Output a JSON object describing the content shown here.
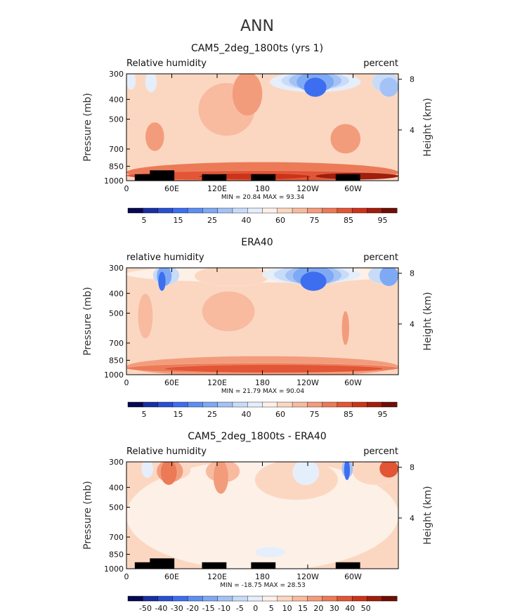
{
  "figure": {
    "title": "ANN"
  },
  "chart_data": [
    {
      "type": "heatmap",
      "title": "CAM5_2deg_1800ts (yrs 1)",
      "left_label": "Relative humidity",
      "right_label": "percent",
      "xlabel": "",
      "ylabel": "Pressure (mb)",
      "ylabel_right": "Height (km)",
      "x_ticks": [
        "0",
        "60E",
        "120E",
        "180",
        "120W",
        "60W"
      ],
      "y_ticks": [
        "300",
        "400",
        "500",
        "700",
        "850",
        "1000"
      ],
      "y_right_ticks": [
        "8",
        "4"
      ],
      "stats": "MIN =   20.84   MAX =   93.34",
      "xlim": [
        0,
        360
      ],
      "ylim": [
        1000,
        300
      ],
      "colorbar": {
        "labels": [
          "5",
          "15",
          "25",
          "40",
          "60",
          "75",
          "85",
          "95"
        ],
        "colors": [
          "#08084f",
          "#1a2fa0",
          "#2a4fd0",
          "#3d6ef0",
          "#5d8ff2",
          "#7ea9f4",
          "#a4c2f5",
          "#c8dbf7",
          "#e5eefb",
          "#fdf0e6",
          "#fbd7c2",
          "#f8bb9f",
          "#f39c7c",
          "#ec7a57",
          "#e25535",
          "#cc3419",
          "#a01e0c",
          "#6e0e06"
        ]
      },
      "blobs": [
        {
          "x": 0,
          "y": 1000,
          "w": 360,
          "h": 170,
          "c": "#ec7a57"
        },
        {
          "x": 0,
          "y": 975,
          "w": 360,
          "h": 60,
          "c": "#e25535"
        },
        {
          "x": 95,
          "y": 965,
          "w": 150,
          "h": 25,
          "c": "#cc3419"
        },
        {
          "x": 250,
          "y": 965,
          "w": 110,
          "h": 30,
          "c": "#a01e0c"
        },
        {
          "x": 95,
          "y": 590,
          "w": 75,
          "h": 250,
          "c": "#f8bb9f"
        },
        {
          "x": 140,
          "y": 470,
          "w": 40,
          "h": 250,
          "c": "#f39c7c"
        },
        {
          "x": 25,
          "y": 700,
          "w": 25,
          "h": 170,
          "c": "#f39c7c"
        },
        {
          "x": 270,
          "y": 720,
          "w": 40,
          "h": 180,
          "c": "#f39c7c"
        },
        {
          "x": 190,
          "y": 360,
          "w": 120,
          "h": 260,
          "c": "#e5eefb"
        },
        {
          "x": 205,
          "y": 350,
          "w": 90,
          "h": 200,
          "c": "#c8dbf7"
        },
        {
          "x": 215,
          "y": 350,
          "w": 70,
          "h": 160,
          "c": "#a4c2f5"
        },
        {
          "x": 225,
          "y": 360,
          "w": 50,
          "h": 100,
          "c": "#7ea9f4"
        },
        {
          "x": 235,
          "y": 380,
          "w": 30,
          "h": 60,
          "c": "#3d6ef0"
        },
        {
          "x": 0,
          "y": 350,
          "w": 12,
          "h": 140,
          "c": "#e5eefb"
        },
        {
          "x": 25,
          "y": 360,
          "w": 15,
          "h": 120,
          "c": "#e5eefb"
        },
        {
          "x": 325,
          "y": 360,
          "w": 35,
          "h": 120,
          "c": "#c8dbf7"
        },
        {
          "x": 335,
          "y": 380,
          "w": 25,
          "h": 60,
          "c": "#a4c2f5"
        }
      ],
      "land": [
        {
          "x": 11,
          "y0": 1000,
          "y1": 930
        },
        {
          "x": 31,
          "y0": 1000,
          "y1": 890
        },
        {
          "x": 100,
          "y0": 1000,
          "y1": 930
        },
        {
          "x": 165,
          "y0": 1000,
          "y1": 930
        },
        {
          "x": 277,
          "y0": 1000,
          "y1": 930
        }
      ]
    },
    {
      "type": "heatmap",
      "title": "ERA40",
      "left_label": "relative humidity",
      "right_label": "percent",
      "xlabel": "",
      "ylabel": "Pressure (mb)",
      "ylabel_right": "Height (km)",
      "x_ticks": [
        "0",
        "60E",
        "120E",
        "180",
        "120W",
        "60W"
      ],
      "y_ticks": [
        "300",
        "400",
        "500",
        "700",
        "850",
        "1000"
      ],
      "y_right_ticks": [
        "8",
        "4"
      ],
      "stats": "MIN =   21.79   MAX =   90.04",
      "xlim": [
        0,
        360
      ],
      "ylim": [
        1000,
        300
      ],
      "colorbar": {
        "labels": [
          "5",
          "15",
          "25",
          "40",
          "60",
          "75",
          "85",
          "95"
        ],
        "colors": [
          "#08084f",
          "#1a2fa0",
          "#2a4fd0",
          "#3d6ef0",
          "#5d8ff2",
          "#7ea9f4",
          "#a4c2f5",
          "#c8dbf7",
          "#e5eefb",
          "#fdf0e6",
          "#fbd7c2",
          "#f8bb9f",
          "#f39c7c",
          "#ec7a57",
          "#e25535",
          "#cc3419",
          "#a01e0c",
          "#6e0e06"
        ]
      },
      "blobs": [
        {
          "x": 0,
          "y": 1000,
          "w": 360,
          "h": 170,
          "c": "#f39c7c"
        },
        {
          "x": 0,
          "y": 960,
          "w": 360,
          "h": 60,
          "c": "#ec7a57"
        },
        {
          "x": 50,
          "y": 955,
          "w": 290,
          "h": 40,
          "c": "#e25535"
        },
        {
          "x": 0,
          "y": 345,
          "w": 360,
          "h": 520,
          "c": "#fdf0e6"
        },
        {
          "x": 90,
          "y": 360,
          "w": 100,
          "h": 450,
          "c": "#fbd7c2"
        },
        {
          "x": 100,
          "y": 600,
          "w": 70,
          "h": 200,
          "c": "#f8bb9f"
        },
        {
          "x": 15,
          "y": 650,
          "w": 20,
          "h": 240,
          "c": "#f8bb9f"
        },
        {
          "x": 285,
          "y": 700,
          "w": 10,
          "h": 200,
          "c": "#f39c7c"
        },
        {
          "x": 35,
          "y": 355,
          "w": 35,
          "h": 320,
          "c": "#c8dbf7"
        },
        {
          "x": 40,
          "y": 360,
          "w": 20,
          "h": 200,
          "c": "#7ea9f4"
        },
        {
          "x": 42,
          "y": 380,
          "w": 10,
          "h": 60,
          "c": "#3d6ef0"
        },
        {
          "x": 180,
          "y": 350,
          "w": 130,
          "h": 330,
          "c": "#e5eefb"
        },
        {
          "x": 195,
          "y": 350,
          "w": 100,
          "h": 250,
          "c": "#c8dbf7"
        },
        {
          "x": 210,
          "y": 355,
          "w": 75,
          "h": 180,
          "c": "#a4c2f5"
        },
        {
          "x": 220,
          "y": 360,
          "w": 55,
          "h": 120,
          "c": "#7ea9f4"
        },
        {
          "x": 230,
          "y": 380,
          "w": 35,
          "h": 60,
          "c": "#3d6ef0"
        },
        {
          "x": 320,
          "y": 350,
          "w": 40,
          "h": 160,
          "c": "#c8dbf7"
        },
        {
          "x": 335,
          "y": 360,
          "w": 25,
          "h": 80,
          "c": "#7ea9f4"
        }
      ],
      "land": []
    },
    {
      "type": "heatmap",
      "title": "CAM5_2deg_1800ts - ERA40",
      "left_label": "Relative humidity",
      "right_label": "percent",
      "xlabel": "",
      "ylabel": "Pressure (mb)",
      "ylabel_right": "Height (km)",
      "x_ticks": [
        "0",
        "60E",
        "120E",
        "180",
        "120W",
        "60W"
      ],
      "y_ticks": [
        "300",
        "400",
        "500",
        "700",
        "850",
        "1000"
      ],
      "y_right_ticks": [
        "8",
        "4"
      ],
      "stats": "MIN =  -18.75   MAX =   28.53",
      "xlim": [
        0,
        360
      ],
      "ylim": [
        1000,
        300
      ],
      "colorbar": {
        "labels": [
          "-50",
          "-40",
          "-30",
          "-20",
          "-15",
          "-10",
          "-5",
          "0",
          "5",
          "10",
          "15",
          "20",
          "30",
          "40",
          "50"
        ],
        "colors": [
          "#08084f",
          "#1a2fa0",
          "#2a4fd0",
          "#3d6ef0",
          "#5d8ff2",
          "#7ea9f4",
          "#a4c2f5",
          "#c8dbf7",
          "#e5eefb",
          "#fdf0e6",
          "#fbd7c2",
          "#f8bb9f",
          "#f39c7c",
          "#ec7a57",
          "#e25535",
          "#cc3419",
          "#a01e0c",
          "#6e0e06"
        ]
      },
      "blobs": [
        {
          "x": 0,
          "y": 1000,
          "w": 360,
          "h": 700,
          "c": "#fdf0e6"
        },
        {
          "x": 35,
          "y": 360,
          "w": 50,
          "h": 520,
          "c": "#fbd7c2"
        },
        {
          "x": 40,
          "y": 370,
          "w": 35,
          "h": 350,
          "c": "#f39c7c"
        },
        {
          "x": 45,
          "y": 380,
          "w": 22,
          "h": 200,
          "c": "#ec7a57"
        },
        {
          "x": 105,
          "y": 370,
          "w": 45,
          "h": 420,
          "c": "#f8bb9f"
        },
        {
          "x": 115,
          "y": 420,
          "w": 20,
          "h": 120,
          "c": "#f39c7c"
        },
        {
          "x": 170,
          "y": 450,
          "w": 110,
          "h": 250,
          "c": "#fbd7c2"
        },
        {
          "x": 300,
          "y": 380,
          "w": 60,
          "h": 180,
          "c": "#fbd7c2"
        },
        {
          "x": 335,
          "y": 350,
          "w": 25,
          "h": 50,
          "c": "#e25535"
        },
        {
          "x": 20,
          "y": 350,
          "w": 15,
          "h": 180,
          "c": "#e5eefb"
        },
        {
          "x": 220,
          "y": 380,
          "w": 35,
          "h": 90,
          "c": "#e5eefb"
        },
        {
          "x": 285,
          "y": 350,
          "w": 15,
          "h": 140,
          "c": "#a4c2f5"
        },
        {
          "x": 288,
          "y": 360,
          "w": 8,
          "h": 60,
          "c": "#3d6ef0"
        },
        {
          "x": 170,
          "y": 860,
          "w": 40,
          "h": 60,
          "c": "#e5eefb"
        }
      ],
      "land": [
        {
          "x": 11,
          "y0": 1000,
          "y1": 930
        },
        {
          "x": 31,
          "y0": 1000,
          "y1": 890
        },
        {
          "x": 100,
          "y0": 1000,
          "y1": 930
        },
        {
          "x": 165,
          "y0": 1000,
          "y1": 930
        },
        {
          "x": 277,
          "y0": 1000,
          "y1": 930
        }
      ]
    }
  ]
}
